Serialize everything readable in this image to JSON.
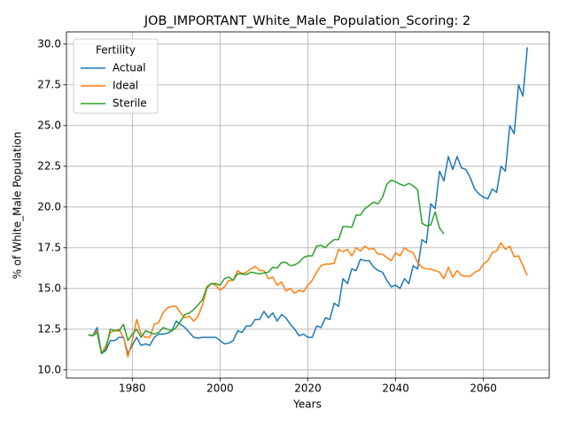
{
  "chart_data": {
    "type": "line",
    "title": "JOB_IMPORTANT_White_Male_Population_Scoring: 2",
    "x_label": "Years",
    "y_label": "% of White_Male Population",
    "legend_title": "Fertility",
    "legend_position": "upper left",
    "grid": true,
    "x": [
      1970,
      1971,
      1972,
      1973,
      1974,
      1975,
      1976,
      1977,
      1978,
      1979,
      1980,
      1981,
      1982,
      1983,
      1984,
      1985,
      1986,
      1987,
      1988,
      1989,
      1990,
      1991,
      1992,
      1993,
      1994,
      1995,
      1996,
      1997,
      1998,
      1999,
      2000,
      2001,
      2002,
      2003,
      2004,
      2005,
      2006,
      2007,
      2008,
      2009,
      2010,
      2011,
      2012,
      2013,
      2014,
      2015,
      2016,
      2017,
      2018,
      2019,
      2020,
      2021,
      2022,
      2023,
      2024,
      2025,
      2026,
      2027,
      2028,
      2029,
      2030,
      2031,
      2032,
      2033,
      2034,
      2035,
      2036,
      2037,
      2038,
      2039,
      2040,
      2041,
      2042,
      2043,
      2044,
      2045,
      2046,
      2047,
      2048,
      2049,
      2050,
      2051,
      2052,
      2053,
      2054,
      2055,
      2056,
      2057,
      2058,
      2059,
      2060,
      2061,
      2062,
      2063,
      2064,
      2065,
      2066,
      2067,
      2068,
      2069,
      2070
    ],
    "xlim": [
      1965,
      2075
    ],
    "xticks": [
      1980,
      2000,
      2020,
      2040,
      2060
    ],
    "ylim": [
      9.5,
      30.75
    ],
    "yticks": [
      {
        "value": 10,
        "label": "10.0"
      },
      {
        "value": 12.5,
        "label": "12.5"
      },
      {
        "value": 15,
        "label": "15.0"
      },
      {
        "value": 17.5,
        "label": "17.5"
      },
      {
        "value": 20,
        "label": "20.0"
      },
      {
        "value": 22.5,
        "label": "22.5"
      },
      {
        "value": 25,
        "label": "25.0"
      },
      {
        "value": 27.5,
        "label": "27.5"
      },
      {
        "value": 30,
        "label": "30.0"
      }
    ],
    "series": [
      {
        "name": "Actual",
        "color": "#1f77b4",
        "values": [
          12.15,
          12.1,
          12.6,
          11.0,
          11.2,
          11.8,
          11.8,
          12.0,
          12.0,
          11.0,
          11.5,
          12.0,
          11.5,
          11.6,
          11.5,
          12.0,
          12.2,
          12.2,
          12.25,
          12.4,
          13.0,
          12.8,
          12.6,
          12.3,
          12.0,
          11.95,
          12.0,
          12.0,
          12.0,
          12.0,
          11.8,
          11.6,
          11.65,
          11.8,
          12.4,
          12.3,
          12.7,
          12.7,
          13.1,
          13.1,
          13.6,
          13.2,
          13.5,
          13.0,
          13.4,
          13.2,
          12.8,
          12.5,
          12.1,
          12.2,
          12.0,
          12.0,
          12.7,
          12.6,
          13.2,
          13.1,
          14.1,
          13.9,
          15.6,
          15.3,
          16.2,
          16.1,
          16.8,
          16.7,
          16.7,
          16.3,
          16.1,
          16.0,
          15.5,
          15.1,
          15.2,
          15.0,
          15.6,
          15.3,
          16.4,
          16.2,
          18.0,
          17.8,
          20.2,
          19.9,
          22.2,
          21.6,
          23.1,
          22.3,
          23.1,
          22.4,
          22.3,
          21.8,
          21.1,
          20.8,
          20.6,
          20.5,
          21.1,
          20.9,
          22.5,
          22.2,
          25.0,
          24.5,
          27.5,
          26.8,
          29.8
        ]
      },
      {
        "name": "Ideal",
        "color": "#ff7f0e",
        "values": [
          12.15,
          12.1,
          12.4,
          11.0,
          11.5,
          12.3,
          12.4,
          12.5,
          12.0,
          10.8,
          11.8,
          13.1,
          12.2,
          12.0,
          12.0,
          12.8,
          12.9,
          13.5,
          13.8,
          13.9,
          13.9,
          13.5,
          13.2,
          13.3,
          13.0,
          13.3,
          14.0,
          15.0,
          15.3,
          15.2,
          14.9,
          15.1,
          15.5,
          15.5,
          16.1,
          15.9,
          16.0,
          16.2,
          16.35,
          16.1,
          16.1,
          15.6,
          15.7,
          15.2,
          15.4,
          14.85,
          15.0,
          14.7,
          14.9,
          14.8,
          15.2,
          15.5,
          16.0,
          16.4,
          16.5,
          16.5,
          16.55,
          17.4,
          17.25,
          17.4,
          17.0,
          17.5,
          17.3,
          17.6,
          17.4,
          17.45,
          17.1,
          17.1,
          16.9,
          16.7,
          17.2,
          17.0,
          17.5,
          17.3,
          17.2,
          16.6,
          16.3,
          16.2,
          16.2,
          16.1,
          16.0,
          15.6,
          16.3,
          15.7,
          16.1,
          15.8,
          15.75,
          15.75,
          16.0,
          16.1,
          16.5,
          16.7,
          17.2,
          17.3,
          17.8,
          17.4,
          17.6,
          16.95,
          17.0,
          16.4,
          15.8
        ]
      },
      {
        "name": "Sterile",
        "color": "#2ca02c",
        "values": [
          12.15,
          12.1,
          12.3,
          11.0,
          11.3,
          12.5,
          12.4,
          12.4,
          12.8,
          11.8,
          12.2,
          12.5,
          12.0,
          12.4,
          12.3,
          12.2,
          12.3,
          12.6,
          12.5,
          12.4,
          12.6,
          13.0,
          13.4,
          13.5,
          13.7,
          14.0,
          14.3,
          15.1,
          15.3,
          15.3,
          15.2,
          15.6,
          15.7,
          15.5,
          15.9,
          15.9,
          15.85,
          16.0,
          15.95,
          15.9,
          15.95,
          16.0,
          16.3,
          16.25,
          16.6,
          16.6,
          16.4,
          16.45,
          16.6,
          16.9,
          17.0,
          17.0,
          17.6,
          17.65,
          17.5,
          17.8,
          18.0,
          18.0,
          18.8,
          18.8,
          18.75,
          19.5,
          19.5,
          19.9,
          20.1,
          20.3,
          20.2,
          20.6,
          21.4,
          21.65,
          21.55,
          21.4,
          21.3,
          21.45,
          21.3,
          21.05,
          19.0,
          18.85,
          18.9,
          19.7,
          18.7,
          18.35,
          null,
          null,
          null,
          null,
          null,
          null,
          null,
          null,
          null,
          null,
          null,
          null,
          null,
          null,
          null,
          null,
          null,
          null,
          null
        ]
      }
    ]
  }
}
